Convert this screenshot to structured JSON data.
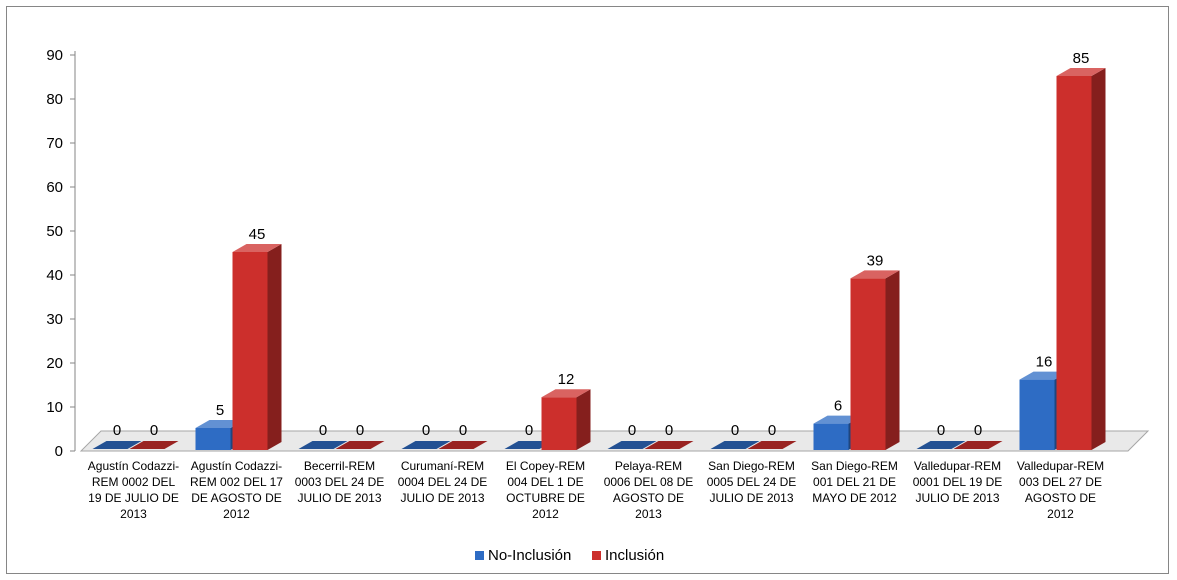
{
  "chart_data": {
    "type": "bar",
    "title": "",
    "xlabel": "",
    "ylabel": "",
    "ylim": [
      0,
      90
    ],
    "yticks": [
      0,
      10,
      20,
      30,
      40,
      50,
      60,
      70,
      80,
      90
    ],
    "grid": false,
    "legend_position": "bottom",
    "categories": [
      "Agustín Codazzi-REM 0002 DEL 19 DE JULIO DE 2013",
      "Agustín Codazzi-REM 002 DEL 17 DE AGOSTO DE 2012",
      "Becerril-REM 0003 DEL 24 DE JULIO DE 2013",
      "Curumaní-REM 0004 DEL 24 DE JULIO DE 2013",
      "El Copey-REM 004 DEL 1 DE OCTUBRE DE 2012",
      "Pelaya-REM 0006 DEL 08 DE AGOSTO DE 2013",
      "San Diego-REM 0005 DEL 24 DE JULIO DE 2013",
      "San Diego-REM 001 DEL 21 DE MAYO DE 2012",
      "Valledupar-REM 0001 DEL 19 DE JULIO DE 2013",
      "Valledupar-REM 003 DEL 27 DE AGOSTO DE 2012"
    ],
    "category_lines": [
      [
        "Agustín Codazzi-",
        "REM 0002 DEL",
        "19 DE JULIO DE",
        "2013"
      ],
      [
        "Agustín Codazzi-",
        "REM 002 DEL 17",
        "DE AGOSTO DE",
        "2012"
      ],
      [
        "Becerril-REM",
        "0003 DEL 24 DE",
        "JULIO DE 2013"
      ],
      [
        "Curumaní-REM",
        "0004 DEL 24 DE",
        "JULIO DE 2013"
      ],
      [
        "El Copey-REM",
        "004 DEL 1 DE",
        "OCTUBRE DE",
        "2012"
      ],
      [
        "Pelaya-REM",
        "0006 DEL 08 DE",
        "AGOSTO DE",
        "2013"
      ],
      [
        "San Diego-REM",
        "0005 DEL 24 DE",
        "JULIO DE 2013"
      ],
      [
        "San Diego-REM",
        "001 DEL 21 DE",
        "MAYO DE 2012"
      ],
      [
        "Valledupar-REM",
        "0001 DEL 19 DE",
        "JULIO DE 2013"
      ],
      [
        "Valledupar-REM",
        "003 DEL 27 DE",
        "AGOSTO DE",
        "2012"
      ]
    ],
    "series": [
      {
        "name": "No-Inclusión",
        "color": "#2e6cc4",
        "values": [
          0,
          5,
          0,
          0,
          0,
          0,
          0,
          6,
          0,
          16
        ]
      },
      {
        "name": "Inclusión",
        "color": "#cc2f2c",
        "values": [
          0,
          45,
          0,
          0,
          12,
          0,
          0,
          39,
          0,
          85
        ]
      }
    ]
  }
}
